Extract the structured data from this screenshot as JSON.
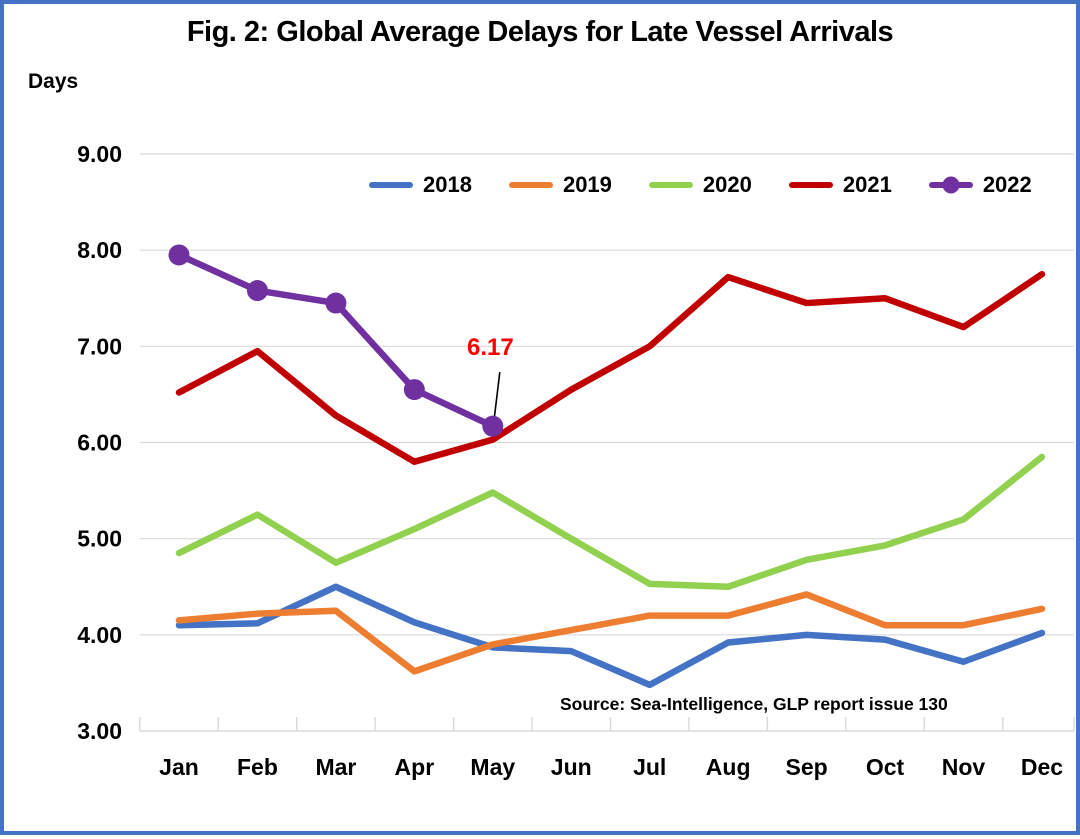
{
  "title": "Fig. 2: Global Average Delays for Late Vessel Arrivals",
  "y_axis_title": "Days",
  "source": "Source: Sea-Intelligence, GLP report issue 130",
  "annotation": {
    "text": "6.17",
    "color": "#FF0000",
    "series": "2022",
    "month": "May",
    "value": 6.17
  },
  "colors": {
    "frame": "#4472C4",
    "gridline": "#D9D9D9",
    "axis_text": "#000000"
  },
  "chart_data": {
    "type": "line",
    "title": "Fig. 2: Global Average Delays for Late Vessel Arrivals",
    "xlabel": "",
    "ylabel": "Days",
    "categories": [
      "Jan",
      "Feb",
      "Mar",
      "Apr",
      "May",
      "Jun",
      "Jul",
      "Aug",
      "Sep",
      "Oct",
      "Nov",
      "Dec"
    ],
    "ylim": [
      3,
      9
    ],
    "y_tick_labels": [
      "3.00",
      "4.00",
      "5.00",
      "6.00",
      "7.00",
      "8.00",
      "9.00"
    ],
    "grid": true,
    "legend_position": "top",
    "series": [
      {
        "name": "2018",
        "color": "#4472C4",
        "marker": false,
        "values": [
          4.1,
          4.12,
          4.5,
          4.13,
          3.87,
          3.83,
          3.48,
          3.92,
          4.0,
          3.95,
          3.72,
          4.02
        ]
      },
      {
        "name": "2019",
        "color": "#ED7D31",
        "marker": false,
        "values": [
          4.15,
          4.22,
          4.25,
          3.62,
          3.9,
          4.05,
          4.2,
          4.2,
          4.42,
          4.1,
          4.1,
          4.27
        ]
      },
      {
        "name": "2020",
        "color": "#92D050",
        "marker": false,
        "values": [
          4.85,
          5.25,
          4.75,
          5.1,
          5.48,
          5.0,
          4.53,
          4.5,
          4.78,
          4.93,
          5.2,
          5.85
        ]
      },
      {
        "name": "2021",
        "color": "#C00000",
        "marker": false,
        "values": [
          6.52,
          6.95,
          6.28,
          5.8,
          6.03,
          6.55,
          7.0,
          7.72,
          7.45,
          7.5,
          7.2,
          7.75
        ]
      },
      {
        "name": "2022",
        "color": "#7030A0",
        "marker": true,
        "values": [
          7.95,
          7.58,
          7.45,
          6.55,
          6.17,
          null,
          null,
          null,
          null,
          null,
          null,
          null
        ]
      }
    ]
  }
}
